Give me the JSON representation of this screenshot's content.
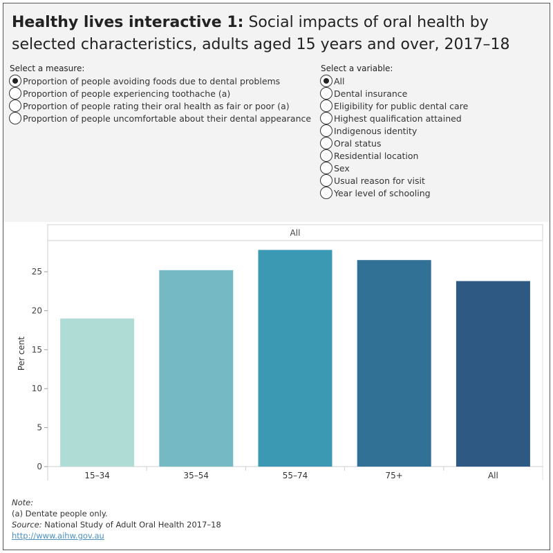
{
  "title": {
    "bold": "Healthy lives interactive 1:",
    "rest": " Social impacts of oral health by selected characteristics, adults aged 15 years and over, 2017–18"
  },
  "measure": {
    "label": "Select a measure:",
    "options": [
      "Proportion of people avoiding foods due to dental problems",
      "Proportion of people experiencing toothache (a)",
      "Proportion of people rating their oral health as fair or poor (a)",
      "Proportion of people uncomfortable about their dental appearance"
    ],
    "selected_index": 0
  },
  "variable": {
    "label": "Select a variable:",
    "options": [
      "All",
      "Dental insurance",
      "Eligibility for public dental care",
      "Highest qualification attained",
      "Indigenous identity",
      "Oral status",
      "Residential location",
      "Sex",
      "Usual reason for visit",
      "Year level of schooling"
    ],
    "selected_index": 0
  },
  "chart_data": {
    "type": "bar",
    "panel_header": "All",
    "ylabel": "Per cent",
    "xlabel": "",
    "categories": [
      "15–34",
      "35–54",
      "55–74",
      "75+",
      "All"
    ],
    "values": [
      19.0,
      25.2,
      27.8,
      26.5,
      23.8
    ],
    "colors": [
      "#b0dcd6",
      "#74b9c4",
      "#3c99b4",
      "#327196",
      "#2e5983"
    ],
    "ylim": [
      0,
      29
    ],
    "yticks": [
      0,
      5,
      10,
      15,
      20,
      25
    ],
    "grid": false
  },
  "notes": {
    "note_label": "Note:",
    "note_text": "(a) Dentate people only.",
    "source_label": "Source:",
    "source_text": " National Study of Adult Oral Health 2017–18",
    "link": "http://www.aihw.gov.au"
  }
}
